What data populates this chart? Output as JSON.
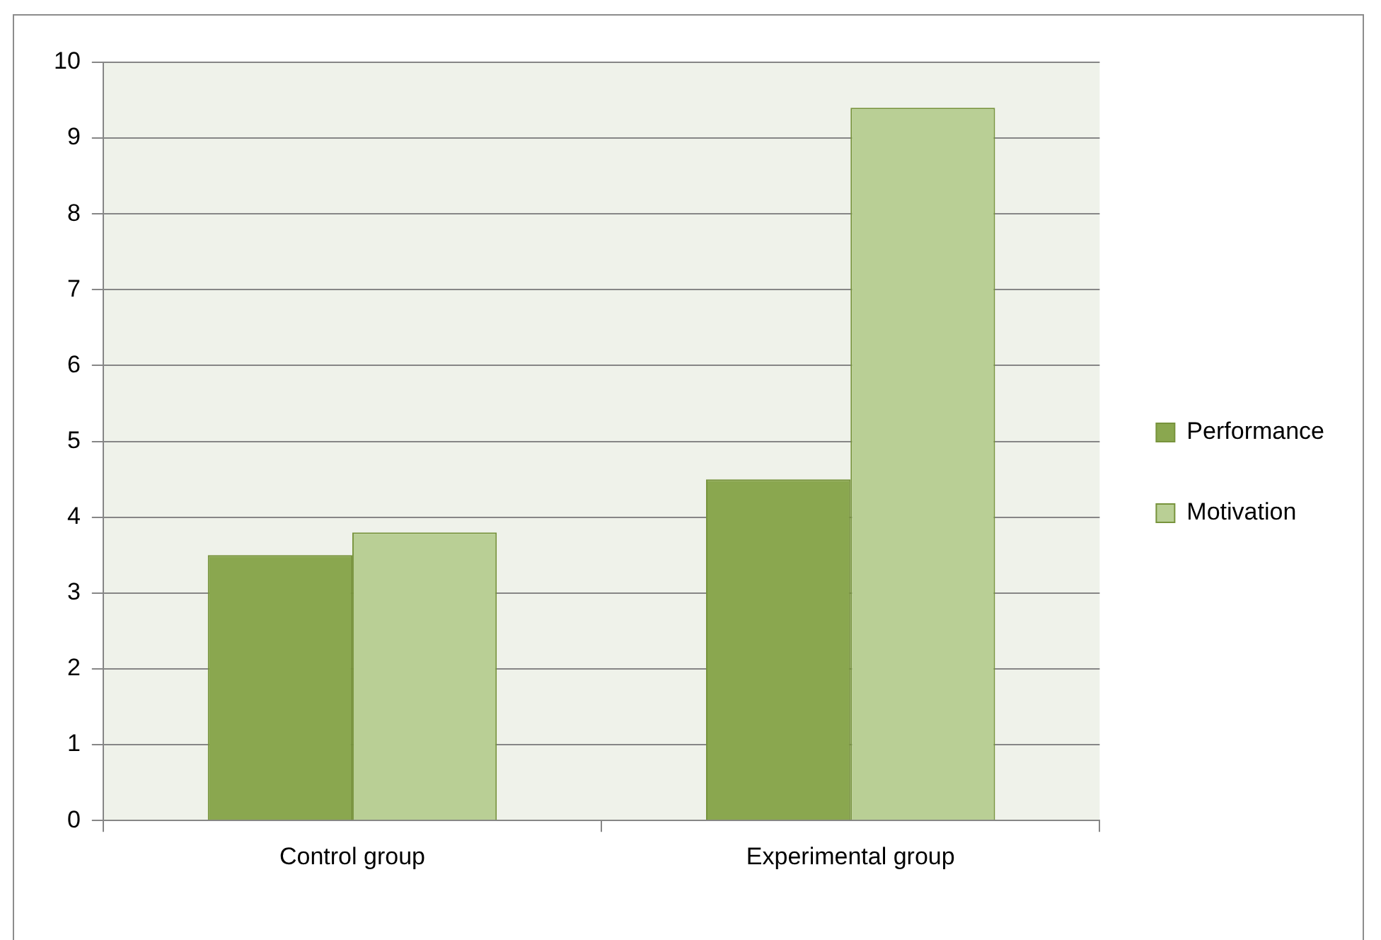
{
  "chart_data": {
    "type": "bar",
    "categories": [
      "Control group",
      "Experimental group"
    ],
    "series": [
      {
        "name": "Performance",
        "color": "#8aa74f",
        "values": [
          3.5,
          4.5
        ]
      },
      {
        "name": "Motivation",
        "color": "#b9cf95",
        "values": [
          3.8,
          9.4
        ]
      }
    ],
    "ylim": [
      0,
      10
    ],
    "yticks": [
      0,
      1,
      2,
      3,
      4,
      5,
      6,
      7,
      8,
      9,
      10
    ],
    "grid": "y",
    "legend": "right"
  }
}
